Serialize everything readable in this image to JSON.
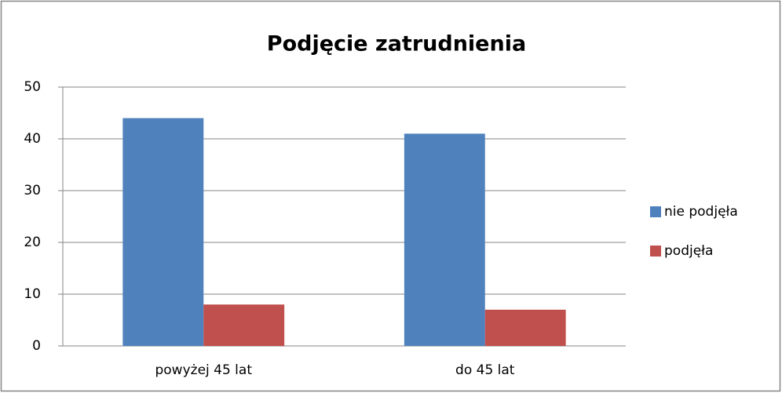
{
  "chart_data": {
    "type": "bar",
    "title": "Podjęcie zatrudnienia",
    "categories": [
      "powyżej 45 lat",
      "do 45 lat"
    ],
    "series": [
      {
        "name": "nie podjęła",
        "color": "#4f81bd",
        "values": [
          44,
          41
        ]
      },
      {
        "name": "podjęła",
        "color": "#c0504d",
        "values": [
          8,
          7
        ]
      }
    ],
    "ylim": [
      0,
      50
    ],
    "yticks": [
      0,
      10,
      20,
      30,
      40,
      50
    ],
    "grid": true,
    "legend": "right"
  }
}
